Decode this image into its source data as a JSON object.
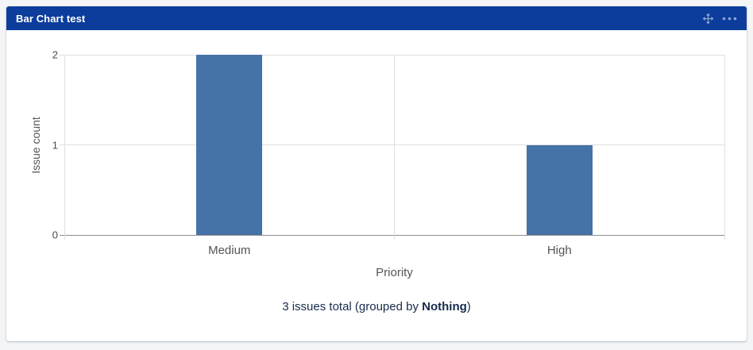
{
  "widget": {
    "title": "Bar Chart test",
    "icons": {
      "move": "four-direction-move-arrows",
      "menu": "horizontal-ellipsis"
    }
  },
  "chart_data": {
    "type": "bar",
    "categories": [
      "Medium",
      "High"
    ],
    "values": [
      2,
      1
    ],
    "title": "",
    "xlabel": "Priority",
    "ylabel": "Issue count",
    "ylim": [
      0,
      2
    ],
    "yticks": [
      0,
      1,
      2
    ],
    "grid": true,
    "legend": false
  },
  "footer": {
    "prefix": "3 issues total (grouped by ",
    "bold": "Nothing",
    "suffix": ")"
  },
  "colors": {
    "page_bg": "#f4f5f7",
    "card_bg": "#ffffff",
    "header_bg": "#0c3d9c",
    "header_text": "#ffffff",
    "header_icon": "#8fa7d6",
    "bar": "#4572a7",
    "grid": "#e0e0e0",
    "axis": "#8f8f8f",
    "tick_text": "#4d4d4d",
    "chart_text": "#545454",
    "footer_text": "#172b4d"
  }
}
